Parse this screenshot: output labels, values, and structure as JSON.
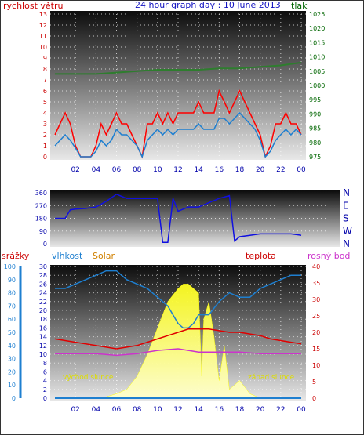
{
  "header": {
    "left_label": "rychlost větru",
    "title": "24 hour graph day : 10 June 2013",
    "right_label": "tlak"
  },
  "colors": {
    "wind": "#ff0000",
    "gust_avg": "#1e7fd0",
    "pressure": "#2e7d2e",
    "direction": "#1010e0",
    "humidity": "#1e7fd0",
    "temperature": "#e00000",
    "dewpoint": "#cc33cc",
    "solar": "#ffff00",
    "rain": "#1e7fd0",
    "title": "#1010c0"
  },
  "chart_data": [
    {
      "type": "line",
      "name": "wind-pressure",
      "x_ticks": [
        "02",
        "04",
        "06",
        "08",
        "10",
        "12",
        "14",
        "16",
        "18",
        "20",
        "22",
        "00"
      ],
      "y_left_ticks": [
        0,
        1,
        2,
        3,
        4,
        5,
        6,
        7,
        8,
        9,
        10,
        11,
        12,
        13
      ],
      "y_left_lim": [
        0,
        13
      ],
      "y_right_ticks": [
        975,
        980,
        985,
        990,
        995,
        1000,
        1005,
        1010,
        1015,
        1020,
        1025
      ],
      "y_right_lim": [
        975,
        1025
      ],
      "ylabel_left": "rychlost větru",
      "ylabel_right": "tlak",
      "grid": true,
      "series": [
        {
          "key": "wind_gust",
          "x": [
            0,
            0.5,
            1,
            1.5,
            2,
            2.5,
            3,
            3.5,
            4,
            4.5,
            5,
            5.5,
            6,
            6.5,
            7,
            7.5,
            8,
            8.5,
            9,
            9.5,
            10,
            10.5,
            11,
            11.5,
            12,
            12.5,
            13,
            13.5,
            14,
            14.5,
            15,
            15.5,
            16,
            16.5,
            17,
            17.5,
            18,
            18.5,
            19,
            19.5,
            20,
            20.5,
            21,
            21.5,
            22,
            22.5,
            23,
            23.5,
            24
          ],
          "y": [
            2,
            3,
            4,
            3,
            1,
            0,
            0,
            0,
            1,
            3,
            2,
            3,
            4,
            3,
            3,
            2,
            1,
            0,
            3,
            3,
            4,
            3,
            4,
            3,
            4,
            4,
            4,
            4,
            5,
            4,
            4,
            4,
            6,
            5,
            4,
            5,
            6,
            5,
            4,
            3,
            2,
            0,
            1,
            3,
            3,
            4,
            3,
            3,
            2
          ]
        },
        {
          "key": "wind_avg",
          "x": [
            0,
            0.5,
            1,
            1.5,
            2,
            2.5,
            3,
            3.5,
            4,
            4.5,
            5,
            5.5,
            6,
            6.5,
            7,
            7.5,
            8,
            8.5,
            9,
            9.5,
            10,
            10.5,
            11,
            11.5,
            12,
            12.5,
            13,
            13.5,
            14,
            14.5,
            15,
            15.5,
            16,
            16.5,
            17,
            17.5,
            18,
            18.5,
            19,
            19.5,
            20,
            20.5,
            21,
            21.5,
            22,
            22.5,
            23,
            23.5,
            24
          ],
          "y": [
            1,
            1.5,
            2,
            1.5,
            0.8,
            0,
            0,
            0,
            0.5,
            1.5,
            1,
            1.5,
            2.5,
            2,
            2,
            1.5,
            1,
            0,
            1.5,
            2,
            2.5,
            2,
            2.5,
            2,
            2.5,
            2.5,
            2.5,
            2.5,
            3,
            2.5,
            2.5,
            2.5,
            3.5,
            3.5,
            3,
            3.5,
            4,
            3.5,
            3,
            2.5,
            1.5,
            0,
            0.5,
            1.5,
            2,
            2.5,
            2,
            2.5,
            2
          ]
        },
        {
          "key": "pressure",
          "x": [
            0,
            2,
            4,
            6,
            8,
            10,
            12,
            14,
            16,
            18,
            20,
            22,
            24
          ],
          "y": [
            1004,
            1004,
            1004,
            1004.5,
            1005,
            1005.5,
            1005.5,
            1005.5,
            1006,
            1006,
            1006.5,
            1007,
            1008
          ]
        }
      ]
    },
    {
      "type": "line",
      "name": "wind-direction",
      "y_left_ticks": [
        0,
        90,
        180,
        270,
        360
      ],
      "y_left_lim": [
        0,
        360
      ],
      "y_right_labels": [
        "N",
        "W",
        "S",
        "E",
        "N"
      ],
      "series": [
        {
          "key": "direction",
          "x": [
            0,
            1,
            1.5,
            2,
            3,
            4,
            5,
            6,
            7,
            8,
            9,
            10,
            10.5,
            11,
            11.5,
            12,
            13,
            14,
            15,
            16,
            17,
            17.5,
            18,
            19,
            20,
            21,
            22,
            23,
            24
          ],
          "y": [
            180,
            180,
            240,
            245,
            250,
            260,
            300,
            350,
            320,
            320,
            320,
            320,
            10,
            10,
            320,
            230,
            260,
            260,
            290,
            320,
            340,
            20,
            50,
            60,
            70,
            70,
            70,
            70,
            60
          ]
        }
      ]
    },
    {
      "type": "area",
      "name": "climate",
      "x_ticks": [
        "02",
        "04",
        "06",
        "08",
        "10",
        "12",
        "14",
        "16",
        "18",
        "20",
        "22",
        "00"
      ],
      "labels": {
        "rain": "srážky",
        "humidity": "vlhkost",
        "solar": "Solar",
        "temperature": "teplota",
        "dewpoint": "rosný bod"
      },
      "y_rain_ticks": [
        0,
        10,
        20,
        30,
        40,
        50,
        60,
        70,
        80,
        90,
        100
      ],
      "y_rain_lim": [
        0,
        100
      ],
      "y_solar_ticks": [
        0,
        2,
        4,
        6,
        8,
        10,
        12,
        14,
        16,
        18,
        20,
        22,
        24,
        26,
        28,
        30
      ],
      "y_solar_lim": [
        0,
        30
      ],
      "y_temp_ticks": [
        0,
        5,
        10,
        15,
        20,
        25,
        30,
        35,
        40
      ],
      "y_temp_lim": [
        0,
        40
      ],
      "annotations": [
        "východ slunce",
        "západ slunce"
      ],
      "series": [
        {
          "key": "humidity",
          "x": [
            0,
            1,
            2,
            3,
            4,
            5,
            6,
            6.5,
            7,
            8,
            9,
            10,
            11,
            12,
            12.5,
            13,
            13.5,
            14,
            15,
            16,
            17,
            18,
            19,
            20,
            21,
            22,
            23,
            24
          ],
          "y": [
            25,
            25,
            26,
            27,
            28,
            29,
            29,
            28,
            27,
            26,
            25,
            23,
            21,
            17,
            16,
            16,
            17,
            19,
            19,
            22,
            24,
            23,
            23,
            25,
            26,
            27,
            28,
            28
          ]
        },
        {
          "key": "temperature",
          "x": [
            0,
            1,
            2,
            3,
            4,
            5,
            6,
            7,
            8,
            9,
            10,
            11,
            12,
            13,
            14,
            15,
            16,
            17,
            18,
            19,
            20,
            21,
            22,
            23,
            24
          ],
          "y": [
            18,
            17.5,
            17,
            16.5,
            16,
            15.5,
            15,
            15.5,
            16,
            17,
            18,
            19,
            20,
            21,
            21,
            21,
            20.5,
            20,
            20,
            19.5,
            19,
            18,
            17.5,
            17,
            16.5
          ]
        },
        {
          "key": "dewpoint",
          "x": [
            0,
            2,
            4,
            6,
            8,
            10,
            12,
            13,
            14,
            16,
            18,
            20,
            22,
            24
          ],
          "y": [
            13.5,
            13.5,
            13.5,
            13,
            13.5,
            14.5,
            15,
            14.5,
            14,
            14,
            14,
            13.5,
            13.5,
            13.5
          ]
        },
        {
          "key": "solar",
          "x": [
            4.7,
            5,
            6,
            7,
            8,
            9,
            10,
            11,
            12,
            12.5,
            13,
            13.5,
            14,
            14.3,
            14.5,
            15,
            15.5,
            16,
            16.5,
            17,
            18,
            19,
            20
          ],
          "y": [
            0,
            0.3,
            1,
            2,
            5,
            10,
            16,
            22,
            25,
            26,
            26,
            25,
            24,
            5,
            18,
            22,
            14,
            4,
            12,
            2,
            4,
            1,
            0
          ]
        },
        {
          "key": "rain",
          "x": [
            0,
            24
          ],
          "y": [
            0,
            0
          ]
        }
      ]
    }
  ]
}
